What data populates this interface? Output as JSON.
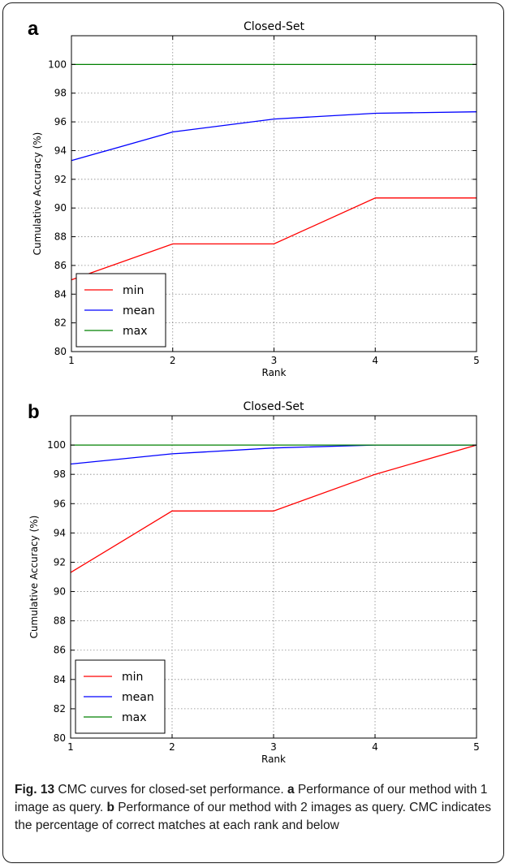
{
  "panels": [
    {
      "letter": "a"
    },
    {
      "letter": "b"
    }
  ],
  "chart_data": [
    {
      "type": "line",
      "title": "Closed-Set",
      "xlabel": "Rank",
      "ylabel": "Cumulative Accuracy (%)",
      "x": [
        1,
        2,
        3,
        4,
        5
      ],
      "xlim": [
        1,
        5
      ],
      "ylim": [
        80,
        102
      ],
      "xticks": [
        "1",
        "2",
        "3",
        "4",
        "5"
      ],
      "yticks": [
        "80",
        "82",
        "84",
        "86",
        "88",
        "90",
        "92",
        "94",
        "96",
        "98",
        "100"
      ],
      "grid": true,
      "legend_position": "lower-left",
      "series": [
        {
          "name": "min",
          "color": "#ff0000",
          "values": [
            85.0,
            87.5,
            87.5,
            90.7,
            90.7
          ]
        },
        {
          "name": "mean",
          "color": "#0000ff",
          "values": [
            93.3,
            95.3,
            96.2,
            96.6,
            96.7
          ]
        },
        {
          "name": "max",
          "color": "#008000",
          "values": [
            100.0,
            100.0,
            100.0,
            100.0,
            100.0
          ]
        }
      ]
    },
    {
      "type": "line",
      "title": "Closed-Set",
      "xlabel": "Rank",
      "ylabel": "Cumulative Accuracy (%)",
      "x": [
        1,
        2,
        3,
        4,
        5
      ],
      "xlim": [
        1,
        5
      ],
      "ylim": [
        80,
        102
      ],
      "xticks": [
        "1",
        "2",
        "3",
        "4",
        "5"
      ],
      "yticks": [
        "80",
        "82",
        "84",
        "86",
        "88",
        "90",
        "92",
        "94",
        "96",
        "98",
        "100"
      ],
      "grid": true,
      "legend_position": "lower-left",
      "series": [
        {
          "name": "min",
          "color": "#ff0000",
          "values": [
            91.3,
            95.5,
            95.5,
            98.0,
            100.0
          ]
        },
        {
          "name": "mean",
          "color": "#0000ff",
          "values": [
            98.7,
            99.4,
            99.8,
            100.0,
            100.0
          ]
        },
        {
          "name": "max",
          "color": "#008000",
          "values": [
            100.0,
            100.0,
            100.0,
            100.0,
            100.0
          ]
        }
      ]
    }
  ],
  "caption": {
    "fig_label": "Fig. 13",
    "fig_text": " CMC curves for closed-set performance. ",
    "a_label": "a",
    "a_text": " Performance of our method with 1 image as query. ",
    "b_label": "b",
    "b_text": " Performance of our method with 2 images as query. CMC indicates the percentage of correct matches at each rank and below"
  }
}
